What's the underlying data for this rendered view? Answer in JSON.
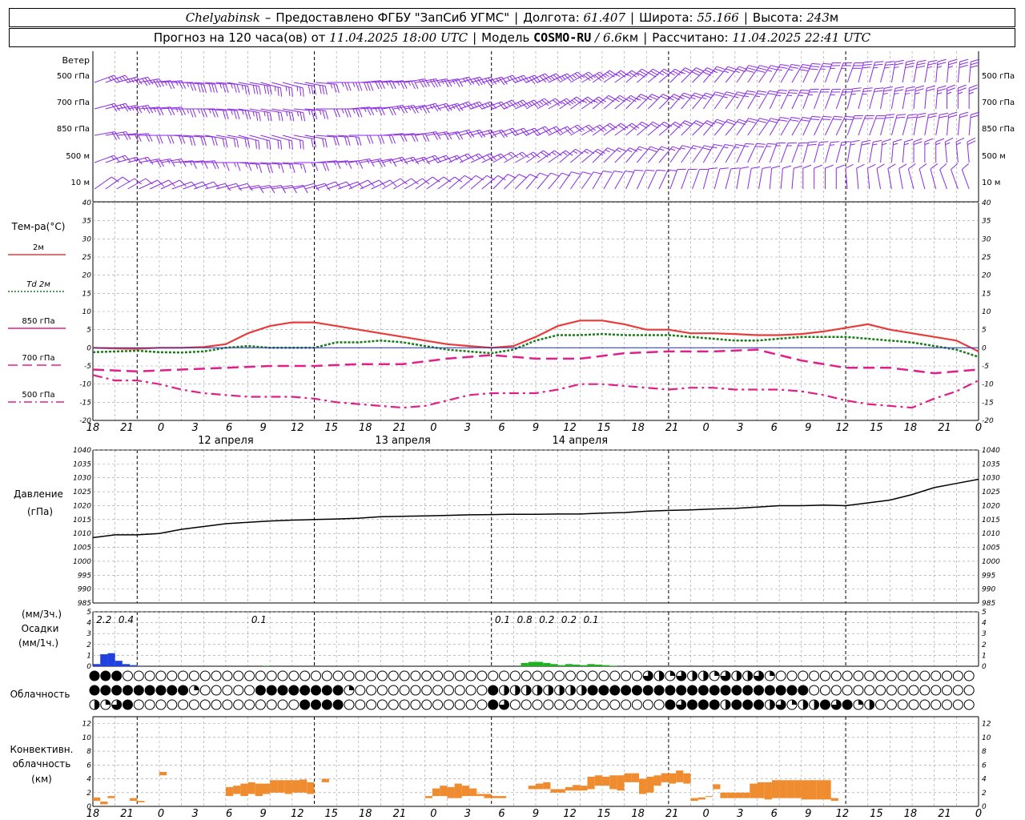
{
  "header": {
    "station": "Chelyabinsk",
    "dash": "–",
    "provider": "Предоставлено ФГБУ \"ЗапСиб УГМС\"",
    "lon_label": "Долгота:",
    "lon": "61.407",
    "lat_label": "Широта:",
    "lat": "55.166",
    "alt_label": "Высота:",
    "alt": "243",
    "alt_unit": "м",
    "forecast_prefix": "Прогноз на 120 часа(ов) от",
    "forecast_from": "11.04.2025 18:00 UTC",
    "model_label": "Модель",
    "model": "COSMO-RU",
    "slash": "/",
    "resolution": "6.6",
    "res_unit": "км",
    "computed_label": "Рассчитано:",
    "computed": "11.04.2025 22:41 UTC"
  },
  "wind_panel": {
    "title": "Ветер",
    "levels": [
      "500 гПа",
      "700 гПа",
      "850 гПа",
      "500 м",
      "10 м"
    ]
  },
  "temp_panel": {
    "title": "Тем-ра(°C)",
    "legend": [
      {
        "label": "2м",
        "prefix": "",
        "color": "#e83c3c",
        "dash": "solid"
      },
      {
        "label": "2м",
        "prefix": "Td",
        "color": "#1a7a1a",
        "dash": "dotted"
      },
      {
        "label": "850 гПа",
        "prefix": "",
        "color": "#e0208a",
        "dash": "solid"
      },
      {
        "label": "700 гПа",
        "prefix": "",
        "color": "#e0208a",
        "dash": "longdash"
      },
      {
        "label": "500 гПа",
        "prefix": "",
        "color": "#e0208a",
        "dash": "dashdot"
      }
    ],
    "yticks": [
      40,
      35,
      30,
      25,
      20,
      15,
      10,
      5,
      0,
      -5,
      -10,
      -15,
      -20
    ]
  },
  "time_axis": {
    "hour_labels": [
      "18",
      "21",
      "0",
      "3",
      "6",
      "9",
      "12",
      "15",
      "18",
      "21",
      "0",
      "3",
      "6",
      "9",
      "12",
      "15",
      "18",
      "21",
      "0",
      "3",
      "6",
      "9",
      "12",
      "15",
      "18",
      "21",
      "0"
    ],
    "date_labels": [
      "12 апреля",
      "13 апреля",
      "14 апреля"
    ]
  },
  "pressure_panel": {
    "title": "Давление",
    "unit": "(гПа)",
    "yticks": [
      1040,
      1035,
      1030,
      1025,
      1020,
      1015,
      1010,
      1005,
      1000,
      995,
      990,
      985
    ]
  },
  "precip_panel": {
    "unit3": "(мм/3ч.)",
    "title": "Осадки",
    "unit1": "(мм/1ч.)",
    "yticks": [
      5,
      4,
      3,
      2,
      1,
      0
    ],
    "totals": [
      {
        "hour": 1.5,
        "text": "2.2"
      },
      {
        "hour": 4.5,
        "text": "0.4"
      },
      {
        "hour": 22.5,
        "text": "0.1"
      },
      {
        "hour": 55.5,
        "text": "0.1"
      },
      {
        "hour": 58.5,
        "text": "0.8"
      },
      {
        "hour": 61.5,
        "text": "0.2"
      },
      {
        "hour": 64.5,
        "text": "0.2"
      },
      {
        "hour": 67.5,
        "text": "0.1"
      }
    ]
  },
  "cloud_panel": {
    "title": "Облачность"
  },
  "conv_panel": {
    "title1": "Конвективн.",
    "title2": "облачность",
    "unit": "(км)",
    "yticks": [
      12,
      10,
      8,
      6,
      4,
      2,
      0
    ]
  },
  "chart_data": [
    {
      "type": "line",
      "title": "Тем-ра(°C)",
      "x_unit": "hours since 11.04.2025 18:00 UTC",
      "ylim": [
        -20,
        40
      ],
      "grid": true,
      "series": [
        {
          "name": "2м",
          "x": [
            0,
            3,
            6,
            9,
            12,
            15,
            18,
            21,
            24,
            27,
            30,
            33,
            36,
            39,
            42,
            45,
            48,
            51,
            54,
            57,
            60,
            63,
            66,
            69,
            72,
            75,
            78,
            81,
            84,
            87,
            90,
            93,
            96,
            99,
            102,
            105,
            108,
            111,
            114,
            117,
            120
          ],
          "values": [
            0,
            -0.2,
            -0.3,
            0,
            0,
            0.2,
            1,
            4,
            6,
            7,
            7,
            6,
            5,
            4,
            3,
            2,
            1,
            0.5,
            0,
            0.5,
            3,
            6,
            7.5,
            7.5,
            6.5,
            5,
            5,
            4,
            4,
            3.8,
            3.5,
            3.5,
            3.8,
            4.5,
            5.5,
            6.5,
            5,
            4,
            3,
            2,
            -1
          ]
        },
        {
          "name": "Td 2м",
          "x": [
            0,
            3,
            6,
            9,
            12,
            15,
            18,
            21,
            24,
            27,
            30,
            33,
            36,
            39,
            42,
            45,
            48,
            51,
            54,
            57,
            60,
            63,
            66,
            69,
            72,
            75,
            78,
            81,
            84,
            87,
            90,
            93,
            96,
            99,
            102,
            105,
            108,
            111,
            114,
            117,
            120
          ],
          "values": [
            -1.2,
            -1,
            -0.8,
            -1.2,
            -1.3,
            -1,
            0,
            0.5,
            0,
            0,
            0,
            1.5,
            1.5,
            2,
            1.5,
            0.5,
            -0.5,
            -1,
            -1.5,
            -0.5,
            2,
            3.5,
            3.5,
            3.8,
            3.5,
            3.5,
            3.5,
            3,
            2.5,
            2,
            2,
            2.5,
            3,
            3,
            3,
            2.5,
            2,
            1.5,
            0.5,
            -0.5,
            -2.5
          ]
        },
        {
          "name": "850 гПа",
          "x": [
            0,
            120
          ],
          "values": [
            0,
            0
          ]
        },
        {
          "name": "700 гПа",
          "x": [
            0,
            6,
            12,
            18,
            24,
            30,
            36,
            42,
            48,
            54,
            60,
            66,
            72,
            78,
            84,
            90,
            96,
            102,
            108,
            114,
            120
          ],
          "values": [
            -6,
            -6.5,
            -6,
            -5.5,
            -5,
            -5,
            -4.5,
            -4.5,
            -3,
            -2,
            -3,
            -3,
            -1.5,
            -1,
            -1,
            -0.5,
            -3.5,
            -5.5,
            -5.5,
            -7,
            -6
          ]
        },
        {
          "name": "500 гПа",
          "x": [
            0,
            3,
            6,
            9,
            12,
            15,
            18,
            21,
            24,
            27,
            30,
            33,
            36,
            39,
            42,
            45,
            48,
            51,
            54,
            57,
            60,
            63,
            66,
            69,
            72,
            75,
            78,
            81,
            84,
            87,
            90,
            93,
            96,
            99,
            102,
            105,
            108,
            111,
            114,
            117,
            120
          ],
          "values": [
            -7.5,
            -9,
            -9,
            -10,
            -11.5,
            -12.5,
            -13,
            -13.5,
            -13.5,
            -13.5,
            -14,
            -15,
            -15.5,
            -16,
            -16.5,
            -16,
            -14.5,
            -13,
            -12.5,
            -12.5,
            -12.5,
            -11.5,
            -10,
            -10,
            -10.5,
            -11,
            -11.5,
            -11,
            -11,
            -11.5,
            -11.5,
            -11.5,
            -12,
            -13,
            -14.5,
            -15.5,
            -16,
            -16.5,
            -14,
            -12,
            -9
          ]
        }
      ]
    },
    {
      "type": "line",
      "title": "Давление",
      "ylabel": "(гПа)",
      "ylim": [
        985,
        1040
      ],
      "grid": true,
      "series": [
        {
          "x": [
            0,
            3,
            6,
            9,
            12,
            15,
            18,
            21,
            24,
            27,
            30,
            33,
            36,
            39,
            42,
            45,
            48,
            51,
            54,
            57,
            60,
            63,
            66,
            69,
            72,
            75,
            78,
            81,
            84,
            87,
            90,
            93,
            96,
            99,
            102,
            105,
            108,
            111,
            114,
            117,
            120
          ],
          "values": [
            1008.5,
            1009.5,
            1009.5,
            1010,
            1011.5,
            1012.5,
            1013.5,
            1014,
            1014.5,
            1014.8,
            1015,
            1015.2,
            1015.5,
            1016,
            1016.2,
            1016.3,
            1016.5,
            1016.7,
            1016.8,
            1016.9,
            1016.9,
            1017,
            1017,
            1017.3,
            1017.5,
            1018,
            1018.3,
            1018.5,
            1018.8,
            1019,
            1019.5,
            1020,
            1020,
            1020.2,
            1020,
            1021,
            1022,
            1024,
            1026.5,
            1028,
            1029.5
          ]
        }
      ]
    },
    {
      "type": "bar",
      "title": "Осадки",
      "ylabel": "(мм/1ч.)",
      "ylim": [
        0,
        5
      ],
      "series": [
        {
          "color": "#2040e0",
          "x": [
            0,
            1,
            2,
            3,
            4,
            5,
            6,
            7
          ],
          "values": [
            0.2,
            1.1,
            1.2,
            0.5,
            0.2,
            0.1,
            0,
            0
          ]
        },
        {
          "color": "#20b020",
          "x": [
            23,
            58,
            59,
            60,
            61,
            62,
            63,
            64,
            65,
            66,
            67,
            68,
            69,
            70
          ],
          "values": [
            0.05,
            0.3,
            0.4,
            0.4,
            0.3,
            0.2,
            0.1,
            0.2,
            0.15,
            0.1,
            0.2,
            0.15,
            0.1,
            0.05
          ]
        }
      ]
    },
    {
      "type": "bar",
      "title": "Конвективн. облачность",
      "ylabel": "(км)",
      "ylim": [
        0,
        13
      ],
      "series": [
        {
          "name": "cloud layers (bottom, top km)",
          "color": "#f08c30",
          "intervals": [
            [
              0,
              1,
              0.8,
              1.3
            ],
            [
              1,
              2,
              0.3,
              0.7
            ],
            [
              2,
              3,
              1.2,
              1.5
            ],
            [
              5,
              6,
              0.8,
              1.2
            ],
            [
              6,
              7,
              0.6,
              0.8
            ],
            [
              9,
              10,
              4.5,
              5
            ],
            [
              18,
              19,
              1.5,
              2.8
            ],
            [
              19,
              20,
              1.8,
              3
            ],
            [
              20,
              21,
              1.5,
              3.3
            ],
            [
              21,
              22,
              1.8,
              3.5
            ],
            [
              22,
              23,
              1.5,
              3.3
            ],
            [
              23,
              24,
              1.8,
              3.3
            ],
            [
              24,
              25,
              2,
              3.8
            ],
            [
              25,
              26,
              2,
              3.8
            ],
            [
              26,
              27,
              1.8,
              3.8
            ],
            [
              27,
              28,
              2,
              3.8
            ],
            [
              28,
              29,
              2,
              3.9
            ],
            [
              29,
              30,
              1.8,
              3.5
            ],
            [
              31,
              32,
              3.5,
              4
            ],
            [
              45,
              46,
              1.2,
              1.5
            ],
            [
              46,
              47,
              1.5,
              2.6
            ],
            [
              47,
              48,
              1.5,
              3
            ],
            [
              48,
              49,
              1.2,
              2.8
            ],
            [
              49,
              50,
              1.2,
              3.3
            ],
            [
              50,
              51,
              1.5,
              3
            ],
            [
              51,
              52,
              1.5,
              2.6
            ],
            [
              52,
              53,
              1.5,
              1.8
            ],
            [
              53,
              54,
              1.2,
              1.8
            ],
            [
              54,
              55,
              1.2,
              1.5
            ],
            [
              55,
              56,
              1.2,
              1.5
            ],
            [
              59,
              60,
              2.5,
              3
            ],
            [
              60,
              61,
              2.5,
              3.3
            ],
            [
              61,
              62,
              2.5,
              3.5
            ],
            [
              62,
              63,
              2,
              2.5
            ],
            [
              63,
              64,
              2,
              2.5
            ],
            [
              64,
              65,
              2.3,
              2.8
            ],
            [
              65,
              66,
              2.3,
              3.1
            ],
            [
              66,
              67,
              2.3,
              3
            ],
            [
              67,
              68,
              2.5,
              4.3
            ],
            [
              68,
              69,
              3,
              4.5
            ],
            [
              69,
              70,
              3,
              4.3
            ],
            [
              70,
              71,
              2.5,
              4.5
            ],
            [
              71,
              72,
              2.3,
              4.5
            ],
            [
              72,
              73,
              3.5,
              4.8
            ],
            [
              73,
              74,
              3.5,
              4.8
            ],
            [
              74,
              75,
              1.8,
              4
            ],
            [
              75,
              76,
              2,
              4.3
            ],
            [
              76,
              77,
              3,
              4.5
            ],
            [
              77,
              78,
              3.5,
              4.8
            ],
            [
              78,
              79,
              3.3,
              4.8
            ],
            [
              79,
              80,
              3.5,
              5.2
            ],
            [
              80,
              81,
              3.3,
              4.8
            ],
            [
              81,
              82,
              0.8,
              1.2
            ],
            [
              82,
              83,
              1,
              1.3
            ],
            [
              83,
              84,
              1.5,
              1.5
            ],
            [
              84,
              85,
              2.5,
              3.2
            ],
            [
              85,
              86,
              1.2,
              2
            ],
            [
              86,
              87,
              1.2,
              2
            ],
            [
              87,
              88,
              1.2,
              2
            ],
            [
              88,
              89,
              1.2,
              2
            ],
            [
              89,
              90,
              1.2,
              3.3
            ],
            [
              90,
              91,
              1.2,
              3.5
            ],
            [
              91,
              92,
              1,
              3.5
            ],
            [
              92,
              93,
              1.2,
              3.8
            ],
            [
              93,
              94,
              1.2,
              3.8
            ],
            [
              94,
              95,
              1.2,
              3.8
            ],
            [
              95,
              96,
              1.2,
              3.8
            ],
            [
              96,
              97,
              1,
              3.8
            ],
            [
              97,
              98,
              1,
              3.8
            ],
            [
              98,
              99,
              1,
              3.8
            ],
            [
              99,
              100,
              1,
              3.8
            ],
            [
              100,
              101,
              0.8,
              1.2
            ]
          ]
        }
      ]
    }
  ],
  "colors": {
    "wind": "#8a2be2",
    "t2m": "#e83c3c",
    "td2m": "#1a7a1a",
    "t850": "#2030c0",
    "tmag": "#e0208a",
    "pressure": "#000000",
    "precip_rain": "#2040e0",
    "precip_light": "#20b020",
    "convective": "#f08c30",
    "grid": "#999999"
  }
}
